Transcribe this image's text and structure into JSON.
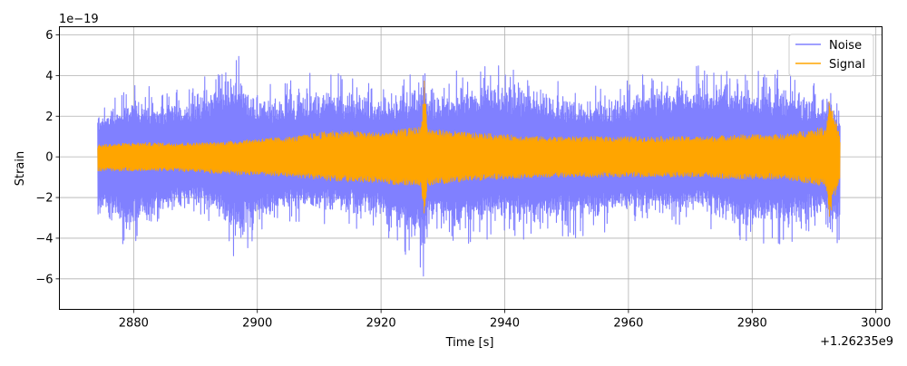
{
  "chart_data": {
    "type": "line",
    "xlabel": "Time [s]",
    "ylabel": "Strain",
    "x_offset_label": "+1.26235e9",
    "y_scale_label": "1e−19",
    "xlim": [
      2868,
      3001
    ],
    "ylim": [
      -7.5,
      6.4
    ],
    "x_ticks": [
      2880,
      2900,
      2920,
      2940,
      2960,
      2980,
      3000
    ],
    "x_tick_labels": [
      "2880",
      "2900",
      "2920",
      "2940",
      "2960",
      "2980",
      "3000"
    ],
    "y_ticks": [
      -6,
      -4,
      -2,
      0,
      2,
      4,
      6
    ],
    "y_tick_labels": [
      "−6",
      "−4",
      "−2",
      "0",
      "2",
      "4",
      "6"
    ],
    "grid": true,
    "legend_position": "top-right",
    "series": [
      {
        "name": "Noise",
        "color": "#8080ff",
        "x": [
          2874.2,
          2880,
          2886,
          2892,
          2897,
          2900,
          2906,
          2912,
          2920,
          2926.5,
          2927,
          2927.5,
          2934,
          2940,
          2946,
          2952,
          2960,
          2966,
          2972,
          2978,
          2985,
          2992.2,
          2994.2
        ],
        "y_max": [
          2.6,
          3.7,
          3.2,
          4.3,
          5.2,
          3.6,
          4.0,
          4.4,
          3.4,
          4.4,
          5.7,
          3.6,
          4.6,
          4.5,
          4.1,
          3.4,
          3.8,
          4.5,
          4.6,
          4.7,
          4.3,
          3.6,
          2.8
        ],
        "y_min": [
          -3.6,
          -4.6,
          -3.2,
          -3.1,
          -5.3,
          -3.9,
          -3.3,
          -3.4,
          -3.8,
          -5.5,
          -6.8,
          -4.2,
          -4.5,
          -3.9,
          -4.2,
          -4.0,
          -3.5,
          -3.6,
          -3.4,
          -4.3,
          -4.4,
          -3.6,
          -4.7
        ]
      },
      {
        "name": "Signal",
        "color": "#ffa500",
        "x": [
          2874.2,
          2880,
          2886,
          2892,
          2897,
          2900,
          2906,
          2912,
          2920,
          2926.5,
          2927,
          2927.5,
          2934,
          2940,
          2946,
          2952,
          2960,
          2966,
          2972,
          2978,
          2985,
          2992,
          2992.4,
          2994.2
        ],
        "y_max": [
          0.6,
          0.7,
          0.7,
          0.7,
          0.8,
          0.9,
          1.0,
          1.3,
          1.2,
          1.5,
          4.0,
          1.4,
          1.2,
          1.1,
          1.0,
          1.0,
          1.0,
          1.0,
          1.0,
          1.1,
          1.1,
          1.5,
          3.0,
          1.0
        ],
        "y_min": [
          -0.7,
          -0.7,
          -0.7,
          -0.8,
          -0.9,
          -0.9,
          -1.0,
          -1.2,
          -1.3,
          -1.5,
          -3.0,
          -1.4,
          -1.2,
          -1.1,
          -1.0,
          -1.0,
          -1.0,
          -1.0,
          -1.0,
          -1.1,
          -1.1,
          -1.5,
          -3.1,
          -1.0
        ]
      }
    ]
  }
}
